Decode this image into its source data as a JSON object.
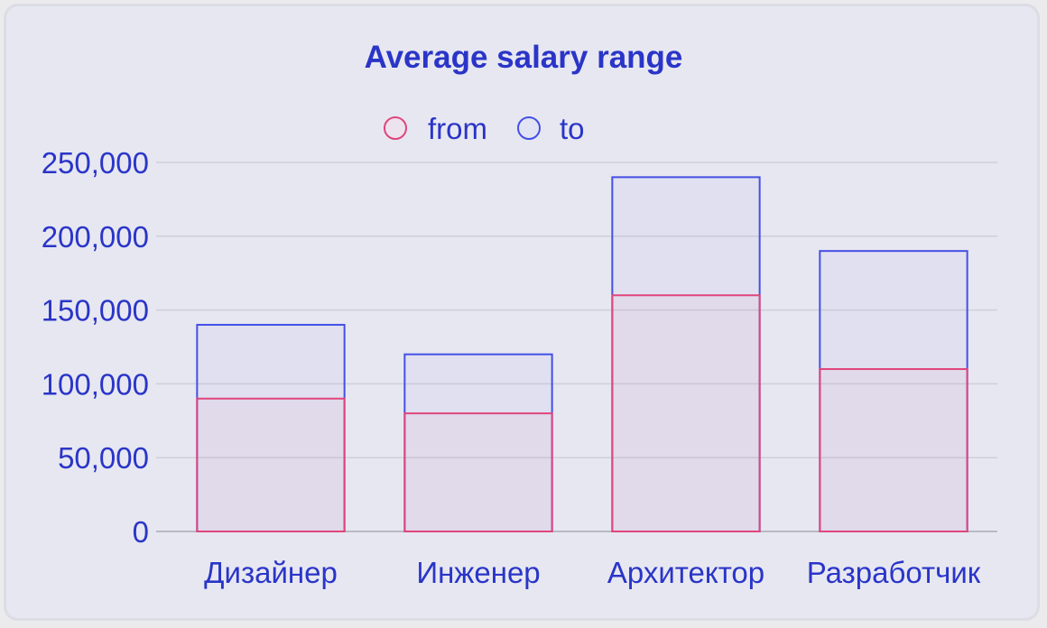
{
  "chart_data": {
    "type": "bar",
    "title": "Average salary range",
    "categories": [
      "Дизайнер",
      "Инженер",
      "Архитектор",
      "Разработчик"
    ],
    "series": [
      {
        "name": "from",
        "values": [
          90000,
          80000,
          160000,
          110000
        ],
        "color": "#e0457b"
      },
      {
        "name": "to",
        "values": [
          140000,
          120000,
          240000,
          190000
        ],
        "color": "#4450e6"
      }
    ],
    "y_ticks": [
      "0",
      "50,000",
      "100,000",
      "150,000",
      "200,000",
      "250,000"
    ],
    "ylim": [
      0,
      250000
    ],
    "legend_position": "top",
    "grid": true,
    "overlapping_bars": true
  }
}
